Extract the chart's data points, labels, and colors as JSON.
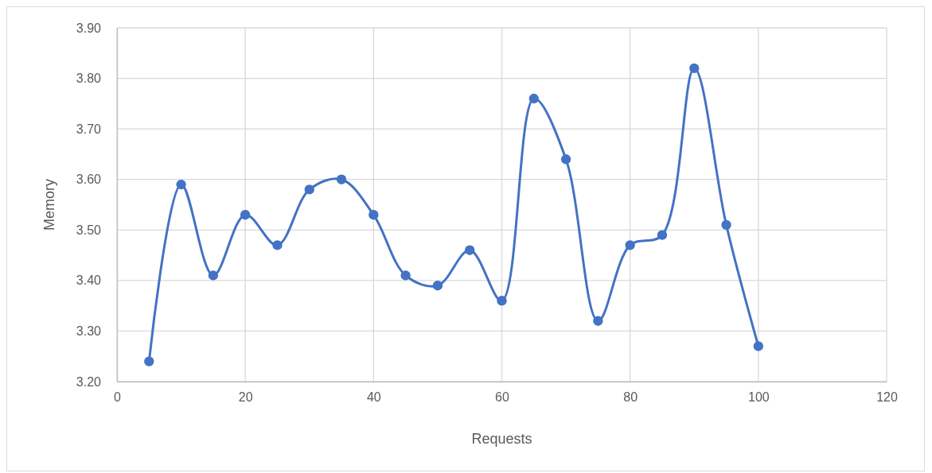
{
  "chart_data": {
    "type": "line",
    "xlabel": "Requests",
    "ylabel": "Memory",
    "x": [
      5,
      10,
      15,
      20,
      25,
      30,
      35,
      40,
      45,
      50,
      55,
      60,
      65,
      70,
      75,
      80,
      85,
      90,
      95,
      100
    ],
    "series": [
      {
        "color": "#4472c4",
        "values": [
          3.24,
          3.59,
          3.41,
          3.53,
          3.47,
          3.58,
          3.6,
          3.53,
          3.41,
          3.39,
          3.46,
          3.36,
          3.76,
          3.64,
          3.32,
          3.47,
          3.49,
          3.82,
          3.51,
          3.27
        ]
      }
    ],
    "xlim": [
      0,
      120
    ],
    "xticks": [
      0,
      20,
      40,
      60,
      80,
      100,
      120
    ],
    "ylim": [
      3.2,
      3.9
    ],
    "yticks": [
      {
        "value": 3.2,
        "label": "3.20"
      },
      {
        "value": 3.3,
        "label": "3.30"
      },
      {
        "value": 3.4,
        "label": "3.40"
      },
      {
        "value": 3.5,
        "label": "3.50"
      },
      {
        "value": 3.6,
        "label": "3.60"
      },
      {
        "value": 3.7,
        "label": "3.70"
      },
      {
        "value": 3.8,
        "label": "3.80"
      },
      {
        "value": 3.9,
        "label": "3.90"
      }
    ],
    "grid": true,
    "marker": "circle",
    "line_style": "solid"
  }
}
